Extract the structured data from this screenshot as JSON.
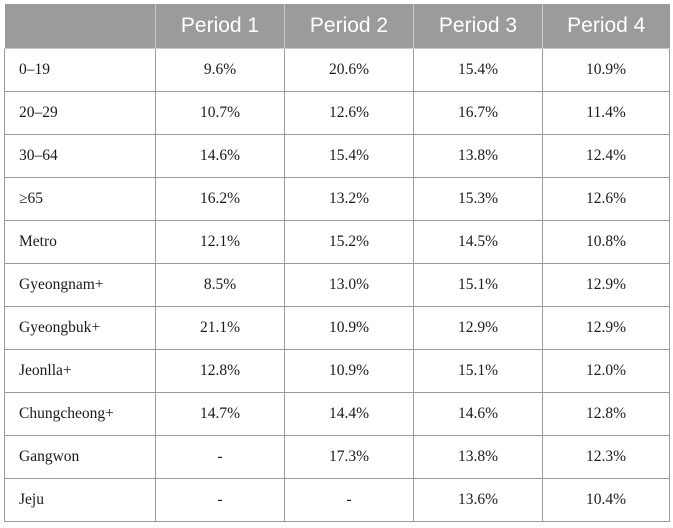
{
  "table": {
    "headers": [
      "",
      "Period 1",
      "Period 2",
      "Period 3",
      "Period 4"
    ],
    "rows": [
      {
        "label": "0–19",
        "values": [
          "9.6%",
          "20.6%",
          "15.4%",
          "10.9%"
        ]
      },
      {
        "label": "20–29",
        "values": [
          "10.7%",
          "12.6%",
          "16.7%",
          "11.4%"
        ]
      },
      {
        "label": "30–64",
        "values": [
          "14.6%",
          "15.4%",
          "13.8%",
          "12.4%"
        ]
      },
      {
        "label": "≥65",
        "values": [
          "16.2%",
          "13.2%",
          "15.3%",
          "12.6%"
        ]
      },
      {
        "label": "Metro",
        "values": [
          "12.1%",
          "15.2%",
          "14.5%",
          "10.8%"
        ]
      },
      {
        "label": "Gyeongnam+",
        "values": [
          "8.5%",
          "13.0%",
          "15.1%",
          "12.9%"
        ]
      },
      {
        "label": "Gyeongbuk+",
        "values": [
          "21.1%",
          "10.9%",
          "12.9%",
          "12.9%"
        ]
      },
      {
        "label": "Jeonlla+",
        "values": [
          "12.8%",
          "10.9%",
          "15.1%",
          "12.0%"
        ]
      },
      {
        "label": "Chungcheong+",
        "values": [
          "14.7%",
          "14.4%",
          "14.6%",
          "12.8%"
        ]
      },
      {
        "label": "Gangwon",
        "values": [
          "-",
          "17.3%",
          "13.8%",
          "12.3%"
        ]
      },
      {
        "label": "Jeju",
        "values": [
          "-",
          "-",
          "13.6%",
          "10.4%"
        ]
      }
    ]
  },
  "colors": {
    "header_background": "#9b9b9b",
    "header_text": "#ffffff",
    "grid_lines": "#9a9a9a"
  }
}
